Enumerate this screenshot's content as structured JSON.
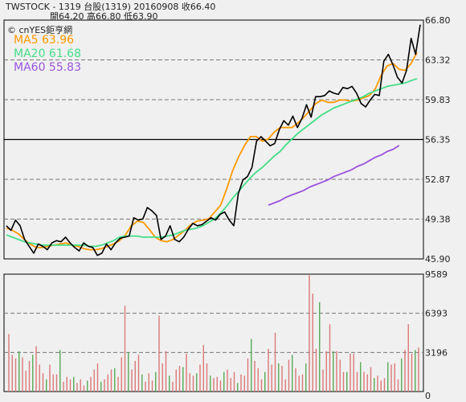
{
  "header": {
    "line1": "TWSTOCK  - 1319  台股(1319)  20160908    收66.40",
    "line2": "開64.20      高66.80     低63.90"
  },
  "watermark": "© cnYES鉅亨網",
  "legend": [
    {
      "label": "MA5 63.96",
      "color": "#ff9900"
    },
    {
      "label": "MA20 61.68",
      "color": "#44dd88"
    },
    {
      "label": "MA60 55.83",
      "color": "#9955dd"
    }
  ],
  "chart_data": [
    {
      "type": "line",
      "y_ticks": [
        "66.80",
        "63.32",
        "59.83",
        "56.35",
        "52.87",
        "49.38",
        "45.90"
      ],
      "ylim": [
        45.9,
        66.8
      ],
      "grid": "dashed horizontal",
      "series": [
        {
          "name": "MA5",
          "color": "#ff9900",
          "values": [
            48.6,
            48.4,
            48.1,
            47.6,
            47.2,
            46.9,
            46.9,
            47.0,
            47.1,
            47.2,
            47.3,
            47.1,
            47.0,
            46.8,
            46.7,
            46.7,
            46.8,
            47.0,
            47.2,
            47.5,
            48.0,
            48.8,
            49.2,
            49.1,
            48.5,
            47.8,
            47.5,
            47.4,
            47.6,
            48.0,
            48.4,
            48.9,
            49.2,
            49.3,
            49.4,
            50.0,
            50.6,
            52.0,
            53.6,
            54.8,
            55.8,
            56.6,
            56.6,
            56.2,
            56.4,
            57.0,
            57.4,
            57.4,
            57.4,
            57.8,
            58.3,
            58.9,
            59.5,
            59.8,
            59.6,
            59.6,
            59.8,
            59.8,
            59.7,
            59.8,
            60.0,
            60.2,
            60.8,
            62.0,
            62.8,
            63.0,
            62.5,
            62.4,
            63.0,
            63.96
          ]
        },
        {
          "name": "MA20",
          "color": "#44dd88",
          "values": [
            48.0,
            47.8,
            47.6,
            47.4,
            47.3,
            47.2,
            47.1,
            47.1,
            47.1,
            47.1,
            47.1,
            47.1,
            47.1,
            47.1,
            47.0,
            47.0,
            47.1,
            47.3,
            47.5,
            47.8,
            47.9,
            47.9,
            47.9,
            47.8,
            47.8,
            47.8,
            47.8,
            47.9,
            48.0,
            48.2,
            48.4,
            48.5,
            48.6,
            48.8,
            49.1,
            49.4,
            49.9,
            50.5,
            51.2,
            51.8,
            52.4,
            53.0,
            53.5,
            53.9,
            54.4,
            54.9,
            55.3,
            55.9,
            56.4,
            56.9,
            57.3,
            57.7,
            58.1,
            58.5,
            58.8,
            59.1,
            59.3,
            59.5,
            59.7,
            59.9,
            60.1,
            60.4,
            60.6,
            60.8,
            61.0,
            61.1,
            61.2,
            61.3,
            61.5,
            61.68
          ]
        },
        {
          "name": "MA60",
          "color": "#9955dd",
          "start": 44,
          "values": [
            50.6,
            50.8,
            51.0,
            51.3,
            51.5,
            51.7,
            51.9,
            52.2,
            52.4,
            52.6,
            52.8,
            53.1,
            53.3,
            53.5,
            53.7,
            54.0,
            54.2,
            54.5,
            54.8,
            55.0,
            55.3,
            55.5,
            55.83
          ]
        },
        {
          "name": "",
          "color": "#000000",
          "values": [
            48.8,
            48.4,
            49.3,
            48.8,
            47.6,
            47.0,
            46.4,
            47.2,
            47.0,
            46.7,
            47.3,
            47.5,
            47.4,
            47.8,
            47.3,
            46.9,
            46.6,
            47.3,
            47.0,
            46.9,
            46.2,
            46.4,
            47.2,
            46.7,
            47.3,
            47.7,
            47.8,
            47.9,
            49.5,
            49.3,
            49.4,
            50.4,
            50.1,
            49.7,
            47.6,
            47.9,
            48.8,
            47.6,
            47.4,
            47.8,
            48.5,
            49.0,
            48.8,
            48.9,
            49.2,
            49.5,
            49.3,
            49.8,
            50.0,
            49.3,
            48.8,
            51.6,
            52.8,
            53.1,
            53.9,
            56.2,
            56.6,
            56.2,
            55.8,
            56.0,
            57.2,
            58.0,
            57.6,
            58.4,
            57.4,
            58.2,
            59.4,
            58.3,
            60.1,
            60.1,
            60.2,
            60.6,
            60.4,
            60.3,
            60.9,
            60.8,
            61.0,
            60.4,
            59.5,
            59.2,
            59.8,
            60.3,
            60.2,
            63.2,
            63.8,
            62.9,
            61.8,
            61.3,
            62.4,
            65.2,
            63.8,
            66.4
          ]
        }
      ]
    },
    {
      "type": "bar",
      "y_ticks": [
        "9589",
        "6393",
        "3196",
        "0"
      ],
      "ylim": [
        0,
        9589
      ],
      "series": [
        {
          "name": "",
          "values": [
            4700,
            3000,
            2700,
            3300,
            2800,
            1700,
            2500,
            3000,
            3700,
            2200,
            1500,
            1000,
            2200,
            1400,
            1400,
            3400,
            800,
            1200,
            1000,
            1200,
            700,
            1000,
            500,
            900,
            1200,
            1800,
            2300,
            800,
            1000,
            1400,
            1800,
            1900,
            1200,
            2800,
            7000,
            3200,
            1800,
            2500,
            3000,
            1400,
            800,
            1500,
            900,
            1600,
            6200,
            2300,
            3300,
            1300,
            800,
            1800,
            2100,
            2000,
            3100,
            1500,
            1300,
            1500,
            2200,
            3800,
            2300,
            1300,
            1100,
            1200,
            900,
            1600,
            1800,
            1100,
            1600,
            700,
            1400,
            1300,
            2700,
            4300,
            2500,
            1900,
            1000,
            1600,
            3500,
            2200,
            4800,
            2300,
            2100,
            1000,
            2600,
            3000,
            1900,
            1300,
            1400,
            2300,
            9500,
            8000,
            3500,
            7300,
            1800,
            3300,
            5500,
            3300,
            3300,
            2600,
            1600,
            1600,
            3100,
            3100,
            1600,
            2400,
            1600,
            1400,
            2000,
            1100,
            1300,
            900,
            1100,
            2400,
            2200,
            2300,
            1000,
            2700,
            3400,
            5500,
            3100,
            3400,
            3600
          ]
        }
      ]
    }
  ]
}
